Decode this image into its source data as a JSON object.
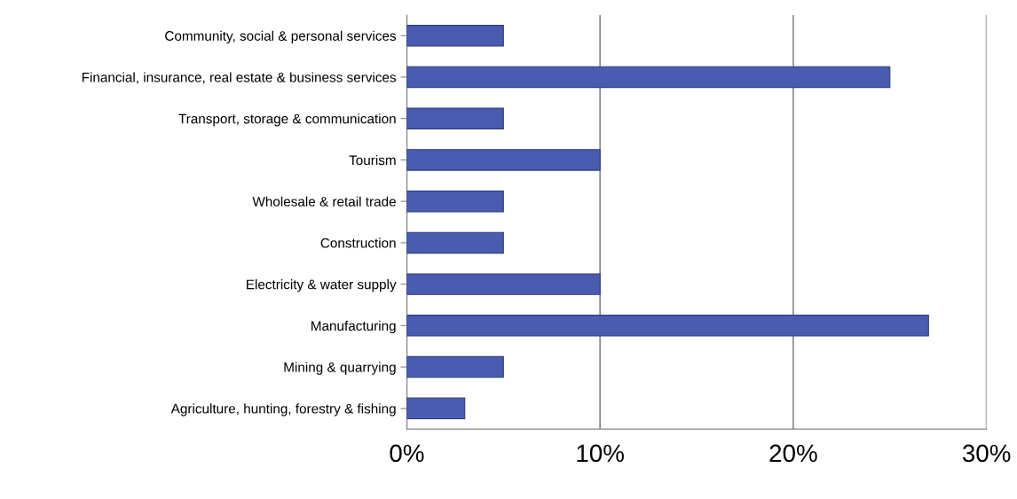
{
  "chart_data": {
    "type": "bar",
    "orientation": "horizontal",
    "categories": [
      "Community, social & personal services",
      "Financial, insurance, real estate & business services",
      "Transport, storage & communication",
      "Tourism",
      "Wholesale & retail trade",
      "Construction",
      "Electricity & water supply",
      "Manufacturing",
      "Mining & quarrying",
      "Agriculture, hunting, forestry & fishing"
    ],
    "values": [
      5,
      25,
      5,
      10,
      5,
      5,
      10,
      27,
      5,
      3
    ],
    "color": "#4a5cb0",
    "xlim": [
      0,
      30
    ],
    "xticks": [
      {
        "value": 0,
        "label": "0%"
      },
      {
        "value": 10,
        "label": "10%"
      },
      {
        "value": 20,
        "label": "20%"
      },
      {
        "value": 30,
        "label": "30%"
      }
    ],
    "grid": "x"
  }
}
